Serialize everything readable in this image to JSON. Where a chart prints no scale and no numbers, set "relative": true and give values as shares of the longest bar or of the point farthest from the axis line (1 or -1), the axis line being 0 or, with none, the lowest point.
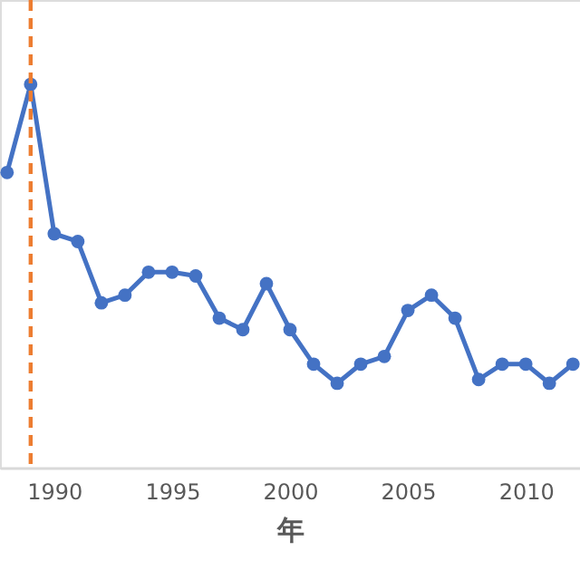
{
  "chart_data": {
    "type": "line",
    "relative": true,
    "xlabel": "年",
    "x": [
      1988,
      1989,
      1990,
      1991,
      1992,
      1993,
      1994,
      1995,
      1996,
      1997,
      1998,
      1999,
      2000,
      2001,
      2002,
      2003,
      2004,
      2005,
      2006,
      2007,
      2008,
      2009,
      2010,
      2011,
      2012
    ],
    "series": [
      {
        "color": "#4472c4",
        "values": [
          0.77,
          1,
          0.61,
          0.59,
          0.43,
          0.45,
          0.51,
          0.51,
          0.5,
          0.39,
          0.36,
          0.48,
          0.36,
          0.27,
          0.22,
          0.27,
          0.29,
          0.41,
          0.45,
          0.39,
          0.23,
          0.27,
          0.27,
          0.22,
          0.27
        ]
      }
    ],
    "xlim": [
      1987.7,
      2012.3
    ],
    "xticks": [
      1990,
      1995,
      2000,
      2005,
      2010
    ],
    "ref_lines": [
      {
        "axis": "x",
        "value": 1989,
        "color": "#ed7d31",
        "line_style": "dashed"
      }
    ],
    "marker": "circle",
    "line_style": "solid",
    "grid": false
  }
}
